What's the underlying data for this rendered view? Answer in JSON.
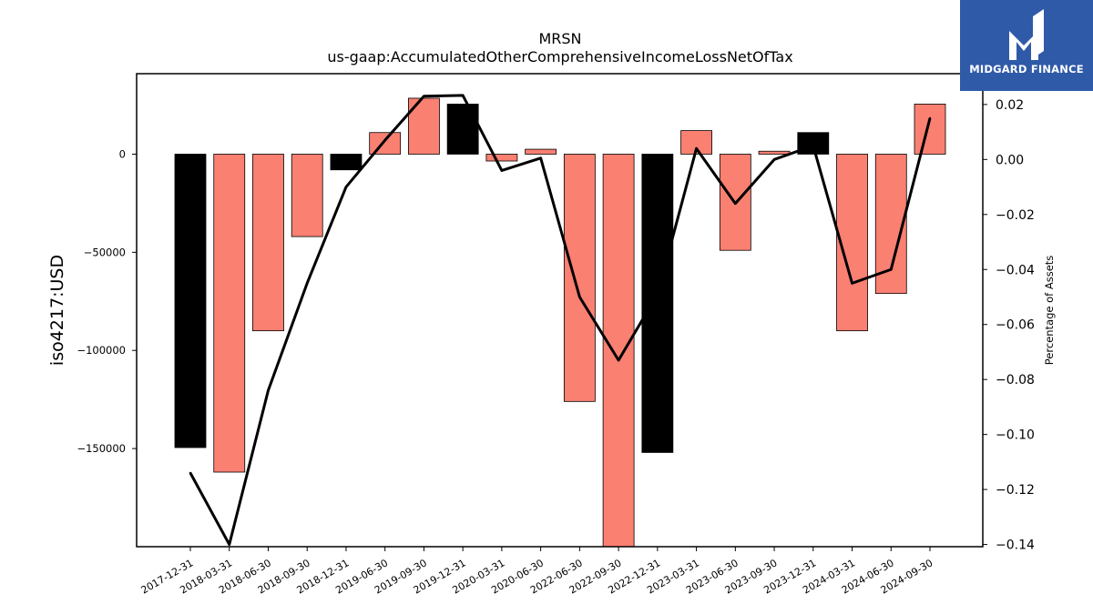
{
  "chart_data": {
    "type": "bar",
    "title": "MRSN",
    "subtitle": "us-gaap:AccumulatedOtherComprehensiveIncomeLossNetOfTax",
    "ylabel": "iso4217:USD",
    "y2label": "Percentage of Assets",
    "ylim": [
      -200000,
      41000
    ],
    "y2lim": [
      -0.1408,
      0.0312
    ],
    "yticks": [
      0,
      -50000,
      -100000,
      -150000
    ],
    "y2ticks": [
      0.02,
      0.0,
      -0.02,
      -0.04,
      -0.06,
      -0.08,
      -0.1,
      -0.12,
      -0.14
    ],
    "categories": [
      "2017-12-31",
      "2018-03-31",
      "2018-06-30",
      "2018-09-30",
      "2018-12-31",
      "2019-06-30",
      "2019-09-30",
      "2019-12-31",
      "2020-03-31",
      "2020-06-30",
      "2022-06-30",
      "2022-09-30",
      "2022-12-31",
      "2023-03-31",
      "2023-06-30",
      "2023-09-30",
      "2023-12-31",
      "2024-03-31",
      "2024-06-30",
      "2024-09-30"
    ],
    "series": [
      {
        "values": [
          -149500,
          -162000,
          -90000,
          -42000,
          -8000,
          11000,
          28500,
          25500,
          -3500,
          2500,
          -126000,
          -200000,
          -152000,
          12000,
          -49000,
          1500,
          11000,
          -90000,
          -71000,
          25500
        ],
        "colors": [
          "#000000",
          "#fa8072",
          "#fa8072",
          "#fa8072",
          "#000000",
          "#fa8072",
          "#fa8072",
          "#000000",
          "#fa8072",
          "#fa8072",
          "#fa8072",
          "#fa8072",
          "#000000",
          "#fa8072",
          "#fa8072",
          "#fa8072",
          "#000000",
          "#fa8072",
          "#fa8072",
          "#fa8072"
        ]
      },
      {
        "axis": "right",
        "type": "line",
        "color": "#000000",
        "values": [
          -0.114,
          -0.14,
          -0.084,
          -0.045,
          -0.01,
          0.007,
          0.023,
          0.0233,
          -0.004,
          0.0005,
          -0.05,
          -0.073,
          -0.049,
          0.004,
          -0.016,
          0.0,
          0.005,
          -0.045,
          -0.04,
          0.015
        ]
      }
    ]
  },
  "logo": {
    "text": "MIDGARD FINANCE"
  }
}
